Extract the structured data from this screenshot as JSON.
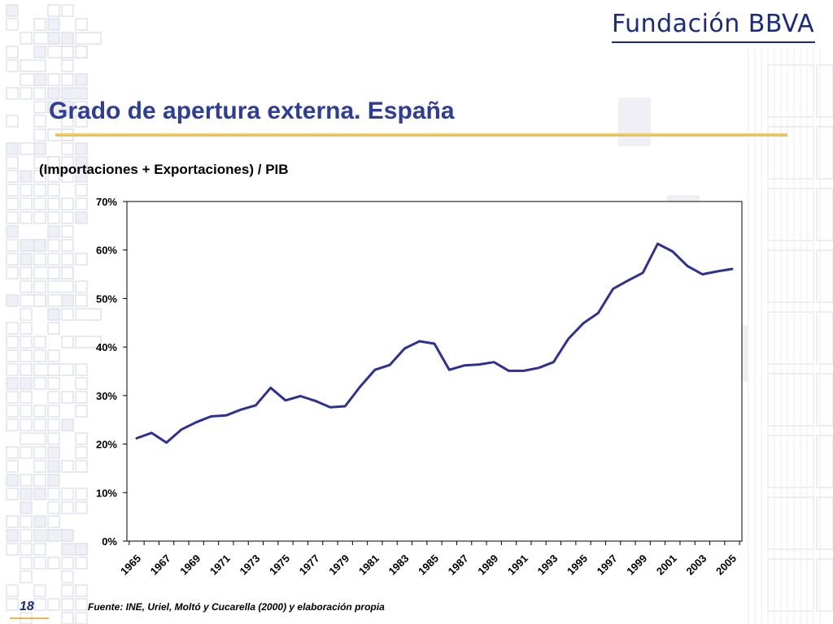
{
  "logo": {
    "text": "Fundación BBVA"
  },
  "header": {
    "title": "Grado de apertura externa. España"
  },
  "chart_title": "(Importaciones + Exportaciones) / PIB",
  "footer": {
    "source": "Fuente:  INE, Uriel, Moltó y Cucarella (2000) y elaboración propia",
    "page_number": "18"
  },
  "colors": {
    "line": "#2e3192",
    "title": "#2e3d96",
    "accent": "#e9b948",
    "logo": "#1a2a80"
  },
  "chart_data": {
    "type": "line",
    "title": "(Importaciones + Exportaciones) / PIB",
    "xlabel": "",
    "ylabel": "",
    "ylim": [
      0,
      70
    ],
    "yticks": [
      0,
      10,
      20,
      30,
      40,
      50,
      60,
      70
    ],
    "ytick_labels": [
      "0%",
      "10%",
      "20%",
      "30%",
      "40%",
      "50%",
      "60%",
      "70%"
    ],
    "xlim": [
      1965,
      2005
    ],
    "x_tick_labels": [
      "1965",
      "1967",
      "1969",
      "1971",
      "1973",
      "1975",
      "1977",
      "1979",
      "1981",
      "1983",
      "1985",
      "1987",
      "1989",
      "1991",
      "1993",
      "1995",
      "1997",
      "1999",
      "2001",
      "2003",
      "2005"
    ],
    "grid": false,
    "x": [
      1965,
      1966,
      1967,
      1968,
      1969,
      1970,
      1971,
      1972,
      1973,
      1974,
      1975,
      1976,
      1977,
      1978,
      1979,
      1980,
      1981,
      1982,
      1983,
      1984,
      1985,
      1986,
      1987,
      1988,
      1989,
      1990,
      1991,
      1992,
      1993,
      1994,
      1995,
      1996,
      1997,
      1998,
      1999,
      2000,
      2001,
      2002,
      2003,
      2004,
      2005
    ],
    "series": [
      {
        "values": [
          21.2,
          22.3,
          20.3,
          23.0,
          24.5,
          25.7,
          25.9,
          27.1,
          28.0,
          31.6,
          29.0,
          29.9,
          28.9,
          27.6,
          27.8,
          31.8,
          35.3,
          36.3,
          39.7,
          41.2,
          40.7,
          35.3,
          36.2,
          36.4,
          36.9,
          35.1,
          35.1,
          35.7,
          36.9,
          41.7,
          44.9,
          47.0,
          52.0,
          53.7,
          55.3,
          61.3,
          59.7,
          56.7,
          55.0,
          55.6,
          56.1
        ]
      }
    ]
  }
}
